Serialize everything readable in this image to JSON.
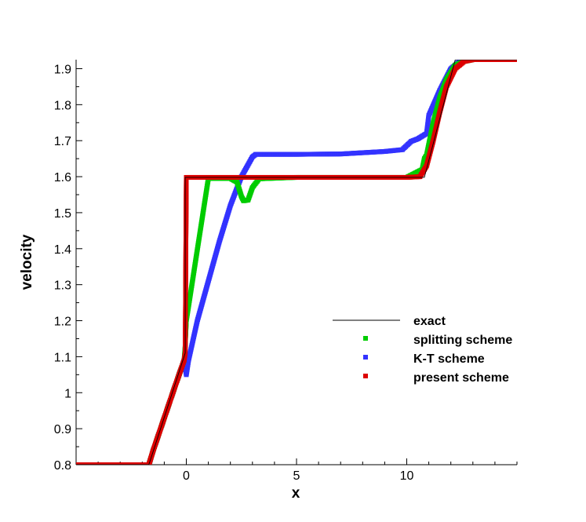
{
  "chart_data": {
    "type": "scatter",
    "title": "",
    "xlabel": "x",
    "ylabel": "velocity",
    "xlim": [
      -5,
      15
    ],
    "ylim": [
      0.8,
      1.925
    ],
    "x_ticks": [
      0,
      5,
      10
    ],
    "y_ticks": [
      0.8,
      0.9,
      1,
      1.1,
      1.2,
      1.3,
      1.4,
      1.5,
      1.6,
      1.7,
      1.8,
      1.9
    ],
    "y_tick_labels": [
      "0.8",
      "0.9",
      "1",
      "1.1",
      "1.2",
      "1.3",
      "1.4",
      "1.5",
      "1.6",
      "1.7",
      "1.8",
      "1.9"
    ],
    "grid": false,
    "legend_position": "center-right",
    "colors": {
      "exact": "#000000",
      "splitting": "#00cc00",
      "kt": "#3333ff",
      "present": "#dd0000"
    },
    "series": [
      {
        "name": "exact",
        "style": "line",
        "x": [
          -5,
          -1.7,
          -0.05,
          -0.05,
          10.8,
          12.2,
          15
        ],
        "y": [
          0.8,
          0.8,
          1.11,
          1.598,
          1.598,
          1.925,
          1.925
        ]
      },
      {
        "name": "splitting scheme",
        "style": "markers",
        "x": [
          -5,
          -1.7,
          -1.5,
          -1.0,
          -0.5,
          -0.1,
          -0.05,
          0.0,
          1.0,
          2.0,
          2.3,
          2.5,
          2.6,
          2.8,
          3.0,
          3.3,
          5,
          8,
          10,
          10.7,
          10.8,
          10.9,
          11.2,
          11.5,
          11.8,
          12.2,
          12.6,
          13,
          15
        ],
        "y": [
          0.8,
          0.8,
          0.84,
          0.93,
          1.02,
          1.09,
          1.13,
          1.2,
          1.595,
          1.595,
          1.585,
          1.545,
          1.533,
          1.535,
          1.57,
          1.594,
          1.598,
          1.598,
          1.598,
          1.62,
          1.65,
          1.66,
          1.75,
          1.82,
          1.87,
          1.91,
          1.92,
          1.925,
          1.925
        ]
      },
      {
        "name": "K-T scheme",
        "style": "markers",
        "x": [
          -5,
          -1.7,
          -1.5,
          -1.0,
          -0.5,
          -0.1,
          0.0,
          0.1,
          0.5,
          1.0,
          1.5,
          2.0,
          2.5,
          3.0,
          3.15,
          5,
          7,
          9,
          9.8,
          10.2,
          10.5,
          10.9,
          11.0,
          11.5,
          12.0,
          12.4,
          13,
          15
        ],
        "y": [
          0.8,
          0.8,
          0.84,
          0.93,
          1.02,
          1.09,
          1.05,
          1.09,
          1.2,
          1.31,
          1.42,
          1.52,
          1.6,
          1.655,
          1.662,
          1.662,
          1.663,
          1.67,
          1.675,
          1.698,
          1.705,
          1.72,
          1.77,
          1.84,
          1.9,
          1.92,
          1.925,
          1.925
        ]
      },
      {
        "name": "present scheme",
        "style": "markers",
        "x": [
          -5,
          -1.7,
          -1.5,
          -1.0,
          -0.5,
          -0.1,
          -0.05,
          0.0,
          5,
          10,
          10.6,
          10.9,
          11.2,
          11.5,
          11.8,
          12.2,
          12.6,
          13,
          15
        ],
        "y": [
          0.8,
          0.8,
          0.84,
          0.93,
          1.02,
          1.09,
          1.11,
          1.598,
          1.598,
          1.598,
          1.6,
          1.63,
          1.7,
          1.78,
          1.85,
          1.9,
          1.92,
          1.925,
          1.925
        ]
      }
    ]
  }
}
